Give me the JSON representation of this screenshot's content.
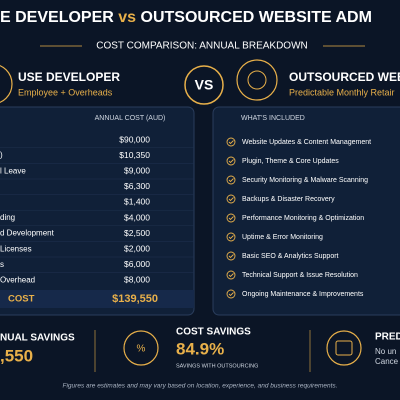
{
  "header": {
    "title_left": "E DEVELOPER",
    "title_vs": "vs",
    "title_right": "OUTSOURCED WEBSITE ADM",
    "subtitle": "COST COMPARISON: ANNUAL BREAKDOWN"
  },
  "left": {
    "title": "USE DEVELOPER",
    "subtitle": "Employee + Overheads",
    "column": "ANNUAL COST (AUD)",
    "rows": [
      [
        "",
        "$90,000"
      ],
      [
        ")",
        "$10,350"
      ],
      [
        "l Leave",
        "$9,000"
      ],
      [
        "",
        "$6,300"
      ],
      [
        "",
        "$1,400"
      ],
      [
        "ding",
        "$4,000"
      ],
      [
        "d Development",
        "$2,500"
      ],
      [
        "Licenses",
        "$2,000"
      ],
      [
        "s",
        "$6,000"
      ],
      [
        "Overhead",
        "$8,000"
      ]
    ],
    "total": [
      "COST",
      "$139,550"
    ]
  },
  "vs": "VS",
  "right": {
    "title": "OUTSOURCED WEBS",
    "subtitle": "Predictable Monthly Retair",
    "column": "WHAT'S INCLUDED",
    "items": [
      "Website Updates & Content Management",
      "Plugin, Theme & Core Updates",
      "Security Monitoring & Malware Scanning",
      "Backups & Disaster Recovery",
      "Performance Monitoring & Optimization",
      "Uptime & Error Monitoring",
      "Basic SEO & Analytics Support",
      "Technical Support & Issue Resolution",
      "Ongoing Maintenance & Improvements"
    ]
  },
  "summary": {
    "annual": {
      "label": "NUAL SAVINGS",
      "value": ",550"
    },
    "cost": {
      "label": "COST SAVINGS",
      "value": "84.9%",
      "note": "SAVINGS WITH OUTSOURCING"
    },
    "pred": {
      "label": "PREDI",
      "line1": "No un",
      "line2": "Cance"
    }
  },
  "footer": "Figures are estimates and may vary based on location, experience, and business requirements."
}
